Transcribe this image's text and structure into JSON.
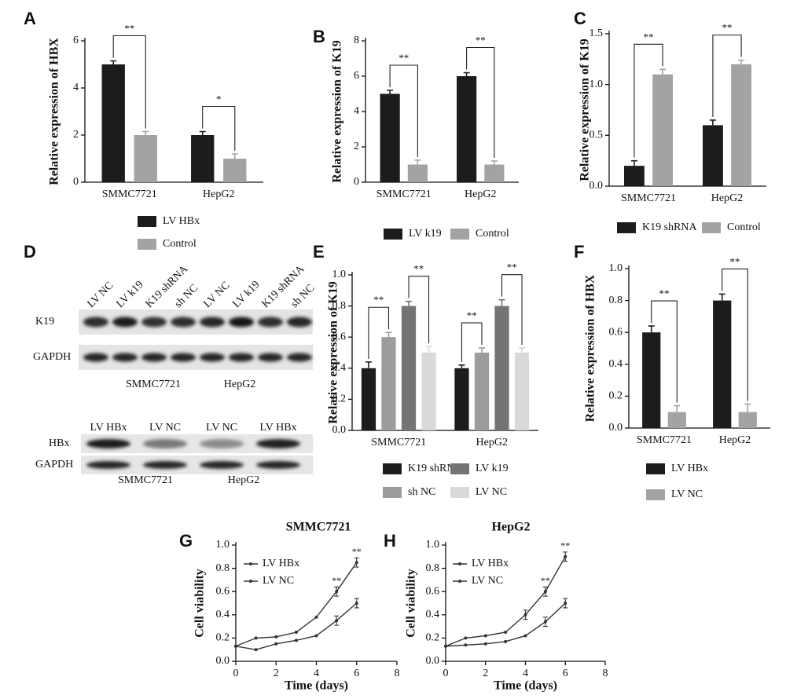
{
  "chart_data": [
    {
      "type": "bar",
      "panel": "A",
      "y_label": "Relative expression of HBX",
      "categories": [
        "SMMC7721",
        "HepG2"
      ],
      "series": [
        {
          "name": "LV HBx",
          "color": "#1c1c1c",
          "values": [
            5,
            2
          ],
          "errors": [
            0.15,
            0.15
          ]
        },
        {
          "name": "Control",
          "color": "#a3a3a3",
          "values": [
            2,
            1
          ],
          "errors": [
            0.15,
            0.2
          ]
        }
      ],
      "ylim": [
        0,
        6
      ],
      "yticks": [
        0,
        2,
        4,
        6
      ],
      "significance": [
        "**",
        "*"
      ]
    },
    {
      "type": "bar",
      "panel": "B",
      "y_label": "Relative expression of K19",
      "categories": [
        "SMMC7721",
        "HepG2"
      ],
      "series": [
        {
          "name": "LV k19",
          "color": "#1c1c1c",
          "values": [
            5,
            6
          ],
          "errors": [
            0.2,
            0.2
          ]
        },
        {
          "name": "Control",
          "color": "#a3a3a3",
          "values": [
            1,
            1
          ],
          "errors": [
            0.25,
            0.2
          ]
        }
      ],
      "ylim": [
        0,
        8
      ],
      "yticks": [
        0,
        2,
        4,
        6,
        8
      ],
      "significance": [
        "**",
        "**"
      ]
    },
    {
      "type": "bar",
      "panel": "C",
      "y_label": "Relative expression of K19",
      "categories": [
        "SMMC7721",
        "HepG2"
      ],
      "series": [
        {
          "name": "K19 shRNA",
          "color": "#1c1c1c",
          "values": [
            0.2,
            0.6
          ],
          "errors": [
            0.05,
            0.05
          ]
        },
        {
          "name": "Control",
          "color": "#a3a3a3",
          "values": [
            1.1,
            1.2
          ],
          "errors": [
            0.05,
            0.04
          ]
        }
      ],
      "ylim": [
        0,
        1.5
      ],
      "yticks": [
        {
          "value": 0,
          "label": "0.0"
        },
        {
          "value": 0.5,
          "label": "0.5"
        },
        {
          "value": 1,
          "label": "1.0"
        },
        {
          "value": 1.5,
          "label": "1.5"
        }
      ],
      "significance": [
        "**",
        "**"
      ]
    },
    {
      "type": "bar",
      "panel": "E",
      "y_label": "Relative expression of K19",
      "categories": [
        "SMMC7721",
        "HepG2"
      ],
      "series": [
        {
          "name": "K19 shRNA",
          "color": "#1c1c1c",
          "values": [
            0.4,
            0.4
          ],
          "errors": [
            0.04,
            0.02
          ]
        },
        {
          "name": "sh NC",
          "color": "#9c9c9c",
          "values": [
            0.6,
            0.5
          ],
          "errors": [
            0.03,
            0.03
          ]
        },
        {
          "name": "LV k19",
          "color": "#747474",
          "values": [
            0.8,
            0.8
          ],
          "errors": [
            0.03,
            0.04
          ]
        },
        {
          "name": "LV NC",
          "color": "#d9d9d9",
          "values": [
            0.5,
            0.5
          ],
          "errors": [
            0.04,
            0.03
          ]
        }
      ],
      "ylim": [
        0,
        1
      ],
      "yticks": [
        {
          "value": 0,
          "label": "0.0"
        },
        {
          "value": 0.2,
          "label": "0.2"
        },
        {
          "value": 0.4,
          "label": "0.4"
        },
        {
          "value": 0.6,
          "label": "0.6"
        },
        {
          "value": 0.8,
          "label": "0.8"
        },
        {
          "value": 1,
          "label": "1.0"
        }
      ],
      "significance": [
        [
          "**",
          "**"
        ],
        [
          "**",
          "**"
        ]
      ]
    },
    {
      "type": "bar",
      "panel": "F",
      "y_label": "Relative expression of HBX",
      "categories": [
        "SMMC7721",
        "HepG2"
      ],
      "series": [
        {
          "name": "LV HBx",
          "color": "#1c1c1c",
          "values": [
            0.6,
            0.8
          ],
          "errors": [
            0.04,
            0.04
          ]
        },
        {
          "name": "LV NC",
          "color": "#a3a3a3",
          "values": [
            0.1,
            0.1
          ],
          "errors": [
            0.04,
            0.05
          ]
        }
      ],
      "ylim": [
        0,
        1
      ],
      "yticks": [
        {
          "value": 0,
          "label": "0.0"
        },
        {
          "value": 0.2,
          "label": "0.2"
        },
        {
          "value": 0.4,
          "label": "0.4"
        },
        {
          "value": 0.6,
          "label": "0.6"
        },
        {
          "value": 0.8,
          "label": "0.8"
        },
        {
          "value": 1,
          "label": "1.0"
        }
      ],
      "significance": [
        "**",
        "**"
      ]
    },
    {
      "type": "line",
      "panel": "G",
      "title": "SMMC7721",
      "x_label": "Time (days)",
      "y_label": "Cell viability",
      "x": [
        0,
        1,
        2,
        3,
        4,
        5,
        6
      ],
      "series": [
        {
          "name": "LV HBx",
          "color": "#333333",
          "values": [
            0.13,
            0.2,
            0.21,
            0.25,
            0.38,
            0.6,
            0.85
          ],
          "errors": [
            null,
            null,
            null,
            null,
            null,
            0.04,
            0.04
          ]
        },
        {
          "name": "LV NC",
          "color": "#333333",
          "values": [
            0.13,
            0.1,
            0.15,
            0.18,
            0.22,
            0.35,
            0.5
          ],
          "errors": [
            null,
            null,
            null,
            null,
            null,
            0.04,
            0.04
          ]
        }
      ],
      "xlim": [
        0,
        8
      ],
      "xticks": [
        0,
        2,
        4,
        6,
        8
      ],
      "ylim": [
        0,
        1
      ],
      "yticks": [
        {
          "value": 0,
          "label": "0.0"
        },
        {
          "value": 0.2,
          "label": "0.2"
        },
        {
          "value": 0.4,
          "label": "0.4"
        },
        {
          "value": 0.6,
          "label": "0.6"
        },
        {
          "value": 0.8,
          "label": "0.8"
        },
        {
          "value": 1,
          "label": "1.0"
        }
      ],
      "significance": [
        null,
        null,
        null,
        null,
        null,
        "**",
        "**"
      ]
    },
    {
      "type": "line",
      "panel": "H",
      "title": "HepG2",
      "x_label": "Time (days)",
      "y_label": "Cell viability",
      "x": [
        0,
        1,
        2,
        3,
        4,
        5,
        6
      ],
      "series": [
        {
          "name": "LV HBx",
          "color": "#333333",
          "values": [
            0.13,
            0.2,
            0.22,
            0.25,
            0.4,
            0.6,
            0.9
          ],
          "errors": [
            null,
            null,
            null,
            null,
            0.04,
            0.04,
            0.04
          ]
        },
        {
          "name": "LV NC",
          "color": "#333333",
          "values": [
            0.13,
            0.14,
            0.15,
            0.17,
            0.22,
            0.34,
            0.5
          ],
          "errors": [
            null,
            null,
            null,
            null,
            null,
            0.04,
            0.04
          ]
        }
      ],
      "xlim": [
        0,
        8
      ],
      "xticks": [
        0,
        2,
        4,
        6,
        8
      ],
      "ylim": [
        0,
        1
      ],
      "yticks": [
        {
          "value": 0,
          "label": "0.0"
        },
        {
          "value": 0.2,
          "label": "0.2"
        },
        {
          "value": 0.4,
          "label": "0.4"
        },
        {
          "value": 0.6,
          "label": "0.6"
        },
        {
          "value": 0.8,
          "label": "0.8"
        },
        {
          "value": 1,
          "label": "1.0"
        }
      ],
      "significance": [
        null,
        null,
        null,
        null,
        null,
        "**",
        "**"
      ]
    }
  ],
  "blot": {
    "panel": "D",
    "top": {
      "lanes": [
        "LV NC",
        "LV k19",
        "K19 shRNA",
        "sh NC",
        "LV NC",
        "LV k19",
        "K19 shRNA",
        "sh NC"
      ],
      "rows": [
        "K19",
        "GAPDH"
      ],
      "groups": [
        "SMMC7721",
        "HepG2"
      ]
    },
    "bottom": {
      "lanes": [
        "LV HBx",
        "LV NC",
        "LV NC",
        "LV HBx"
      ],
      "rows": [
        "HBx",
        "GAPDH"
      ],
      "groups": [
        "SMMC7721",
        "HepG2"
      ]
    }
  }
}
